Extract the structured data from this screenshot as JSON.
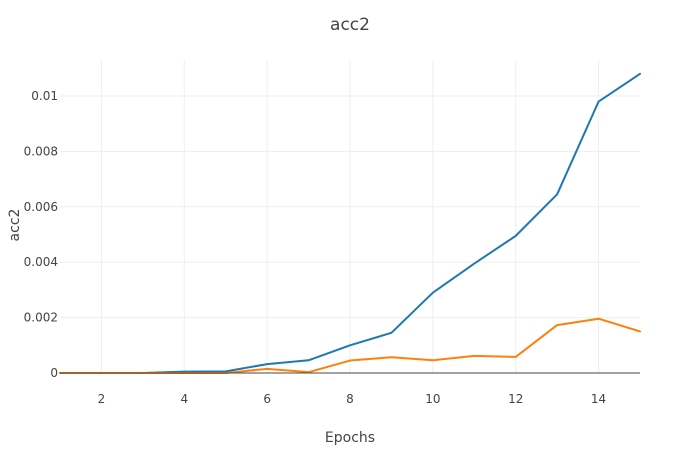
{
  "chart_data": {
    "type": "line",
    "title": "acc2",
    "xlabel": "Epochs",
    "ylabel": "acc2",
    "x": [
      1,
      2,
      3,
      4,
      5,
      6,
      7,
      8,
      9,
      10,
      11,
      12,
      13,
      14,
      15
    ],
    "xlim": [
      1,
      15
    ],
    "ylim": [
      0,
      0.0113
    ],
    "xticks": [
      2,
      4,
      6,
      8,
      10,
      12,
      14
    ],
    "xtick_labels": [
      "2",
      "4",
      "6",
      "8",
      "10",
      "12",
      "14"
    ],
    "yticks": [
      0,
      0.002,
      0.004,
      0.006,
      0.008,
      0.01
    ],
    "ytick_labels": [
      "0",
      "0.002",
      "0.004",
      "0.006",
      "0.008",
      "0.01"
    ],
    "grid": true,
    "series": [
      {
        "color": "#1f77b4",
        "values": [
          0,
          0,
          0,
          5e-05,
          6e-05,
          0.00032,
          0.00046,
          0.001,
          0.00145,
          0.0029,
          0.00395,
          0.00495,
          0.00645,
          0.0098,
          0.0108
        ]
      },
      {
        "color": "#ff7f0e",
        "values": [
          0,
          0,
          0,
          0,
          0,
          0.00015,
          3e-05,
          0.00045,
          0.00057,
          0.00046,
          0.00062,
          0.00058,
          0.00173,
          0.00196,
          0.0015
        ]
      }
    ]
  }
}
